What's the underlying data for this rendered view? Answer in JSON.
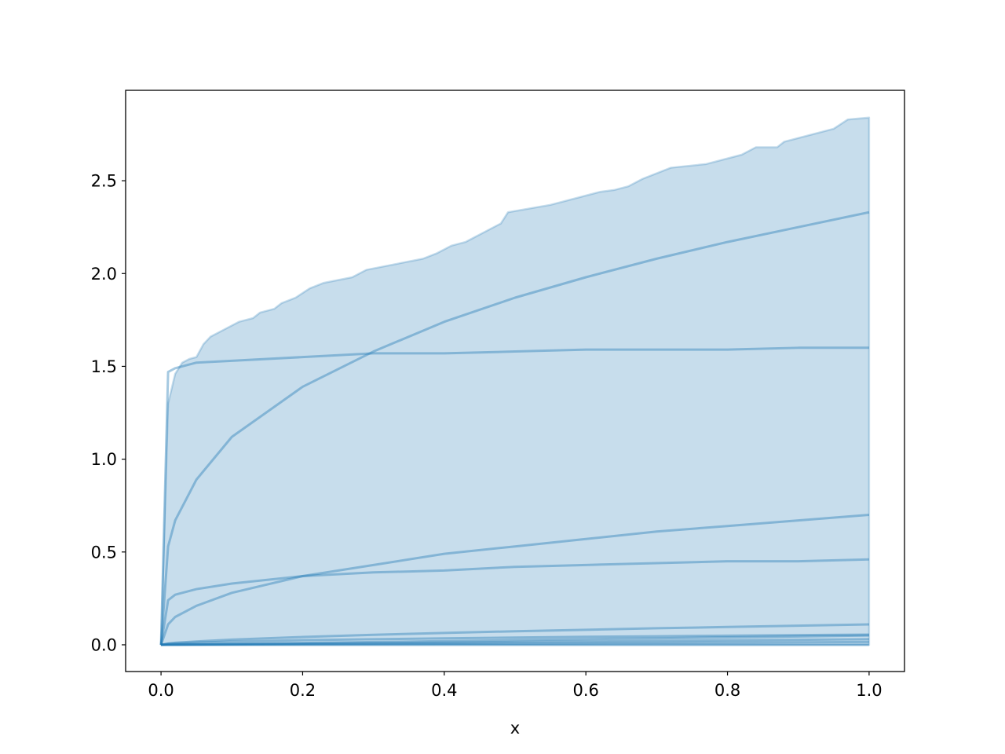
{
  "chart_data": {
    "type": "line",
    "title": "",
    "xlabel": "x",
    "ylabel": "",
    "xlim": [
      -0.05,
      1.05
    ],
    "ylim": [
      -0.144,
      2.987
    ],
    "xticks": [
      0.0,
      0.2,
      0.4,
      0.6,
      0.8,
      1.0
    ],
    "xtick_labels": [
      "0.0",
      "0.2",
      "0.4",
      "0.6",
      "0.8",
      "1.0"
    ],
    "yticks": [
      0.0,
      0.5,
      1.0,
      1.5,
      2.0,
      2.5
    ],
    "ytick_labels": [
      "0.0",
      "0.5",
      "1.0",
      "1.5",
      "2.0",
      "2.5"
    ],
    "grid": false,
    "color": "#1f77b4",
    "x": [
      0,
      0.01,
      0.02,
      0.05,
      0.1,
      0.2,
      0.3,
      0.4,
      0.5,
      0.6,
      0.7,
      0.8,
      0.9,
      1.0
    ],
    "series": [
      {
        "values": [
          0,
          0.53,
          0.67,
          0.89,
          1.12,
          1.39,
          1.58,
          1.74,
          1.87,
          1.98,
          2.08,
          2.17,
          2.25,
          2.33
        ]
      },
      {
        "values": [
          0,
          1.47,
          1.49,
          1.52,
          1.53,
          1.55,
          1.57,
          1.57,
          1.58,
          1.59,
          1.59,
          1.59,
          1.6,
          1.6
        ]
      },
      {
        "values": [
          0,
          0.11,
          0.15,
          0.21,
          0.28,
          0.37,
          0.43,
          0.49,
          0.53,
          0.57,
          0.61,
          0.64,
          0.67,
          0.7
        ]
      },
      {
        "values": [
          0,
          0.24,
          0.27,
          0.3,
          0.33,
          0.37,
          0.39,
          0.4,
          0.42,
          0.43,
          0.44,
          0.45,
          0.45,
          0.46
        ]
      },
      {
        "values": [
          0,
          0.007,
          0.011,
          0.018,
          0.028,
          0.042,
          0.054,
          0.064,
          0.073,
          0.081,
          0.089,
          0.096,
          0.103,
          0.11
        ]
      },
      {
        "values": [
          0,
          0.006,
          0.008,
          0.012,
          0.017,
          0.025,
          0.03,
          0.035,
          0.039,
          0.043,
          0.046,
          0.049,
          0.052,
          0.055
        ]
      },
      {
        "values": [
          0,
          0.0005,
          0.001,
          0.0025,
          0.005,
          0.01,
          0.015,
          0.02,
          0.025,
          0.03,
          0.035,
          0.04,
          0.045,
          0.05
        ]
      },
      {
        "values": [
          0,
          0.0003,
          0.0006,
          0.0015,
          0.003,
          0.006,
          0.009,
          0.012,
          0.015,
          0.018,
          0.021,
          0.024,
          0.027,
          0.03
        ]
      },
      {
        "values": [
          0,
          0.0002,
          0.0003,
          0.0008,
          0.0015,
          0.003,
          0.0045,
          0.006,
          0.0075,
          0.009,
          0.0105,
          0.012,
          0.0135,
          0.015
        ]
      },
      {
        "values": [
          0,
          0,
          0,
          0,
          0,
          0,
          0,
          0,
          0,
          0,
          0,
          0,
          0,
          0
        ]
      }
    ],
    "band": {
      "lower": 0,
      "upper_x": [
        0,
        0.01,
        0.02,
        0.03,
        0.04,
        0.05,
        0.06,
        0.07,
        0.09,
        0.11,
        0.13,
        0.14,
        0.16,
        0.17,
        0.19,
        0.21,
        0.23,
        0.27,
        0.29,
        0.37,
        0.39,
        0.41,
        0.43,
        0.44,
        0.47,
        0.48,
        0.49,
        0.55,
        0.62,
        0.64,
        0.66,
        0.68,
        0.72,
        0.77,
        0.82,
        0.84,
        0.87,
        0.88,
        0.95,
        0.97,
        1.0
      ],
      "upper_y": [
        0,
        1.3,
        1.46,
        1.52,
        1.54,
        1.55,
        1.62,
        1.66,
        1.7,
        1.74,
        1.76,
        1.79,
        1.81,
        1.84,
        1.87,
        1.92,
        1.95,
        1.98,
        2.02,
        2.08,
        2.11,
        2.15,
        2.17,
        2.19,
        2.25,
        2.27,
        2.33,
        2.37,
        2.44,
        2.45,
        2.47,
        2.51,
        2.57,
        2.59,
        2.64,
        2.68,
        2.68,
        2.71,
        2.78,
        2.83,
        2.84
      ]
    }
  }
}
